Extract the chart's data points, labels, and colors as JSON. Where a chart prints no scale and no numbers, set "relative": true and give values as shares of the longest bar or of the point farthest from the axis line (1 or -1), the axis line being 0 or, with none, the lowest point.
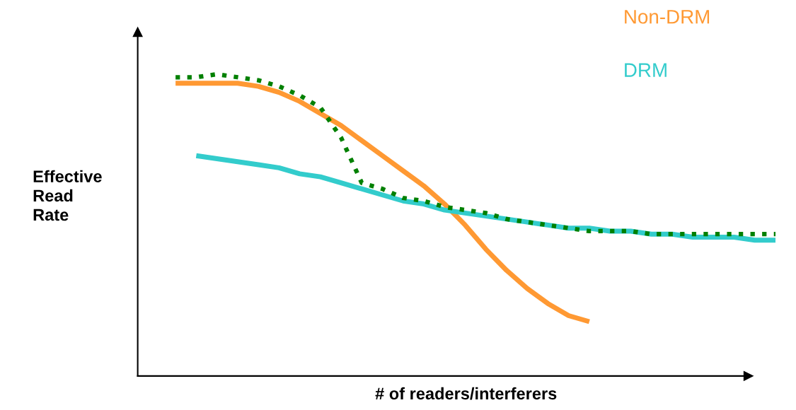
{
  "chart_data": {
    "type": "line",
    "relative": true,
    "xlabel": "# of readers/interferers",
    "ylabel": "Effective\nRead\nRate",
    "legend": false,
    "categories": [
      null,
      null,
      null,
      null,
      null,
      null,
      null,
      null,
      null,
      null,
      null,
      null,
      null,
      null,
      null,
      null,
      null,
      null,
      null,
      null,
      null,
      null,
      null,
      null,
      null,
      null,
      null,
      null,
      null,
      null
    ],
    "series": [
      {
        "name": "Non-DRM",
        "color": "#ff9933",
        "line_style": "solid",
        "values": [
          0.97,
          0.97,
          0.97,
          0.97,
          0.96,
          0.94,
          0.91,
          0.87,
          0.83,
          0.78,
          0.73,
          0.68,
          0.63,
          0.57,
          0.5,
          0.42,
          0.35,
          0.29,
          0.24,
          0.2,
          0.18,
          null,
          null,
          null,
          null,
          null,
          null,
          null,
          null,
          null
        ]
      },
      {
        "name": "DRM",
        "color": "#33cccc",
        "line_style": "solid",
        "values": [
          null,
          0.73,
          0.72,
          0.71,
          0.7,
          0.69,
          0.67,
          0.66,
          0.64,
          0.62,
          0.6,
          0.58,
          0.57,
          0.55,
          0.54,
          0.53,
          0.52,
          0.51,
          0.5,
          0.49,
          0.49,
          0.48,
          0.48,
          0.47,
          0.47,
          0.46,
          0.46,
          0.46,
          0.45,
          0.45
        ]
      },
      {
        "color": "#008000",
        "line_style": "dotted",
        "values": [
          0.99,
          0.99,
          1.0,
          0.99,
          0.98,
          0.96,
          0.93,
          0.89,
          0.79,
          0.64,
          0.62,
          0.59,
          0.58,
          0.56,
          0.55,
          0.54,
          0.52,
          0.51,
          0.5,
          0.49,
          0.48,
          0.48,
          0.48,
          0.47,
          0.47,
          0.47,
          0.47,
          0.47,
          0.47,
          0.47
        ]
      }
    ]
  }
}
